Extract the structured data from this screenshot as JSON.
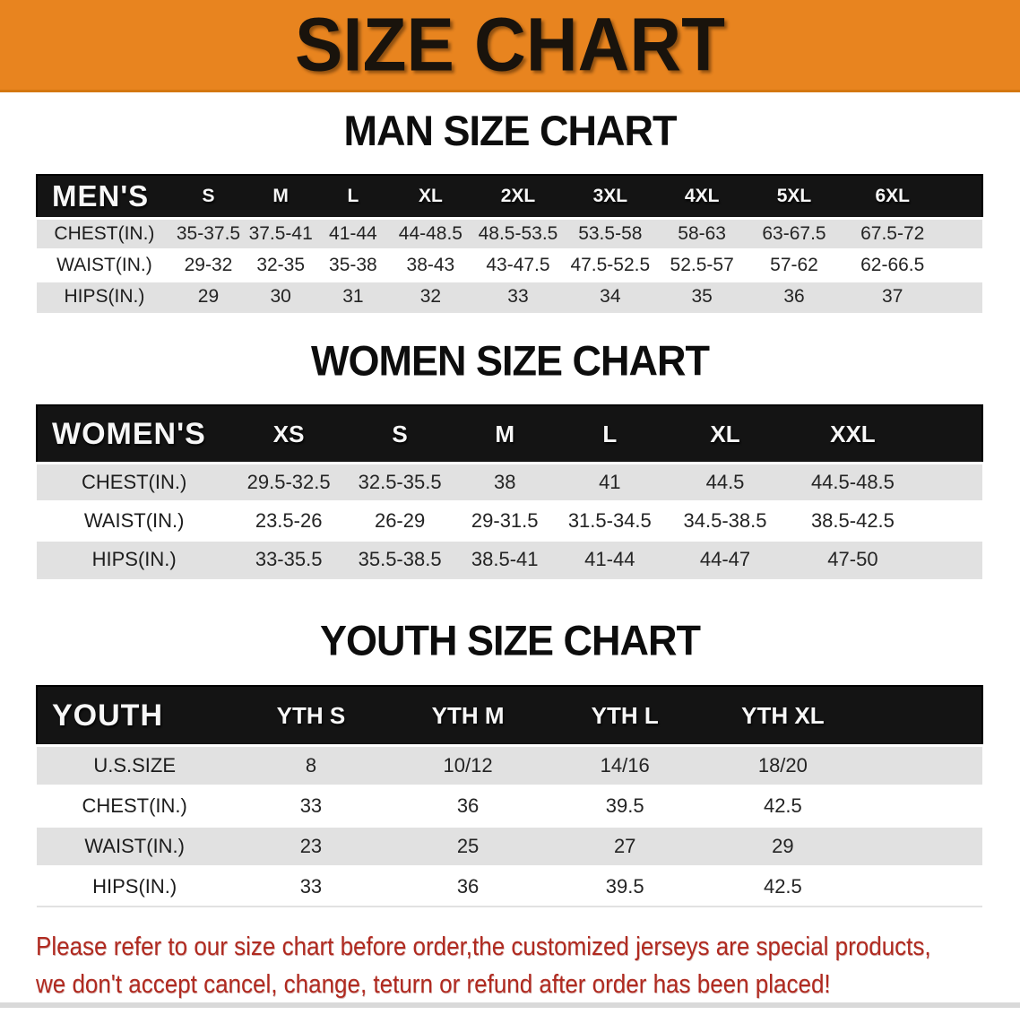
{
  "banner": {
    "title": "SIZE CHART",
    "bg_color": "#E8841F",
    "text_color": "#19130C"
  },
  "sections": [
    {
      "title": "MAN SIZE CHART",
      "group_label": "MEN'S",
      "sizes": [
        "S",
        "M",
        "L",
        "XL",
        "2XL",
        "3XL",
        "4XL",
        "5XL",
        "6XL"
      ],
      "rows": [
        {
          "label": "CHEST(IN.)",
          "values": [
            "35-37.5",
            "37.5-41",
            "41-44",
            "44-48.5",
            "48.5-53.5",
            "53.5-58",
            "58-63",
            "63-67.5",
            "67.5-72"
          ]
        },
        {
          "label": "WAIST(IN.)",
          "values": [
            "29-32",
            "32-35",
            "35-38",
            "38-43",
            "43-47.5",
            "47.5-52.5",
            "52.5-57",
            "57-62",
            "62-66.5"
          ]
        },
        {
          "label": "HIPS(IN.)",
          "values": [
            "29",
            "30",
            "31",
            "32",
            "33",
            "34",
            "35",
            "36",
            "37"
          ]
        }
      ]
    },
    {
      "title": "WOMEN SIZE CHART",
      "group_label": "WOMEN'S",
      "sizes": [
        "XS",
        "S",
        "M",
        "L",
        "XL",
        "XXL"
      ],
      "rows": [
        {
          "label": "CHEST(IN.)",
          "values": [
            "29.5-32.5",
            "32.5-35.5",
            "38",
            "41",
            "44.5",
            "44.5-48.5"
          ]
        },
        {
          "label": "WAIST(IN.)",
          "values": [
            "23.5-26",
            "26-29",
            "29-31.5",
            "31.5-34.5",
            "34.5-38.5",
            "38.5-42.5"
          ]
        },
        {
          "label": "HIPS(IN.)",
          "values": [
            "33-35.5",
            "35.5-38.5",
            "38.5-41",
            "41-44",
            "44-47",
            "47-50"
          ]
        }
      ]
    },
    {
      "title": "YOUTH SIZE CHART",
      "group_label": "YOUTH",
      "sizes": [
        "YTH S",
        "YTH M",
        "YTH L",
        "YTH XL"
      ],
      "rows": [
        {
          "label": "U.S.SIZE",
          "values": [
            "8",
            "10/12",
            "14/16",
            "18/20"
          ]
        },
        {
          "label": "CHEST(IN.)",
          "values": [
            "33",
            "36",
            "39.5",
            "42.5"
          ]
        },
        {
          "label": "WAIST(IN.)",
          "values": [
            "23",
            "25",
            "27",
            "29"
          ]
        },
        {
          "label": "HIPS(IN.)",
          "values": [
            "33",
            "36",
            "39.5",
            "42.5"
          ]
        }
      ]
    }
  ],
  "footer": {
    "line1": "Please refer to our size chart before order,the customized jerseys are special products,",
    "line2": "we don't accept cancel, change, teturn or refund after order has been placed!",
    "text_color": "#B02A20"
  }
}
